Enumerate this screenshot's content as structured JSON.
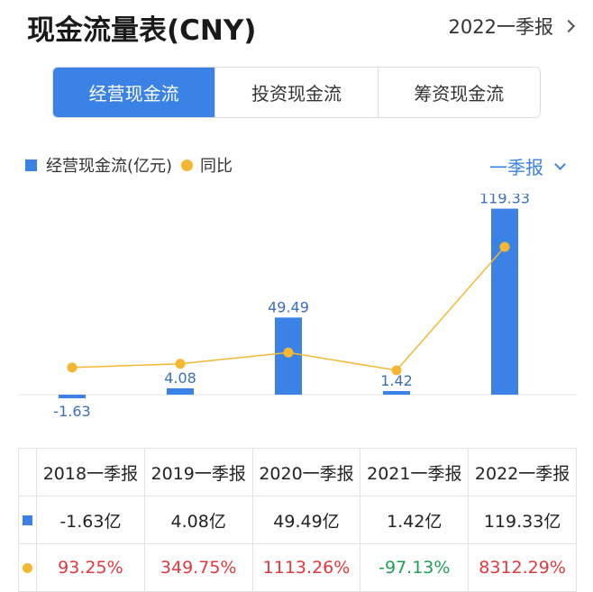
{
  "header": {
    "title": "现金流量表(CNY)",
    "period": "2022一季报"
  },
  "tabs": [
    "经营现金流",
    "投资现金流",
    "筹资现金流"
  ],
  "legend": {
    "bar": "经营现金流(亿元)",
    "line": "同比"
  },
  "frequency": "一季报",
  "colors": {
    "bar": "#3b82e6",
    "line": "#f5b731",
    "positive": "#e0383e",
    "negative": "#1f9d55"
  },
  "chart_data": {
    "type": "bar",
    "categories": [
      "2018一季报",
      "2019一季报",
      "2020一季报",
      "2021一季报",
      "2022一季报"
    ],
    "series": [
      {
        "name": "经营现金流(亿元)",
        "type": "bar",
        "values": [
          -1.63,
          4.08,
          49.49,
          1.42,
          119.33
        ],
        "labels": [
          "-1.63",
          "4.08",
          "49.49",
          "1.42",
          "119.33"
        ]
      },
      {
        "name": "同比",
        "type": "line",
        "values": [
          93.25,
          349.75,
          1113.26,
          -97.13,
          8312.29
        ]
      }
    ]
  },
  "table": {
    "headers": [
      "2018一季报",
      "2019一季报",
      "2020一季报",
      "2021一季报",
      "2022一季报"
    ],
    "values": [
      "-1.63亿",
      "4.08亿",
      "49.49亿",
      "1.42亿",
      "119.33亿"
    ],
    "yoy": [
      "93.25%",
      "349.75%",
      "1113.26%",
      "-97.13%",
      "8312.29%"
    ]
  }
}
